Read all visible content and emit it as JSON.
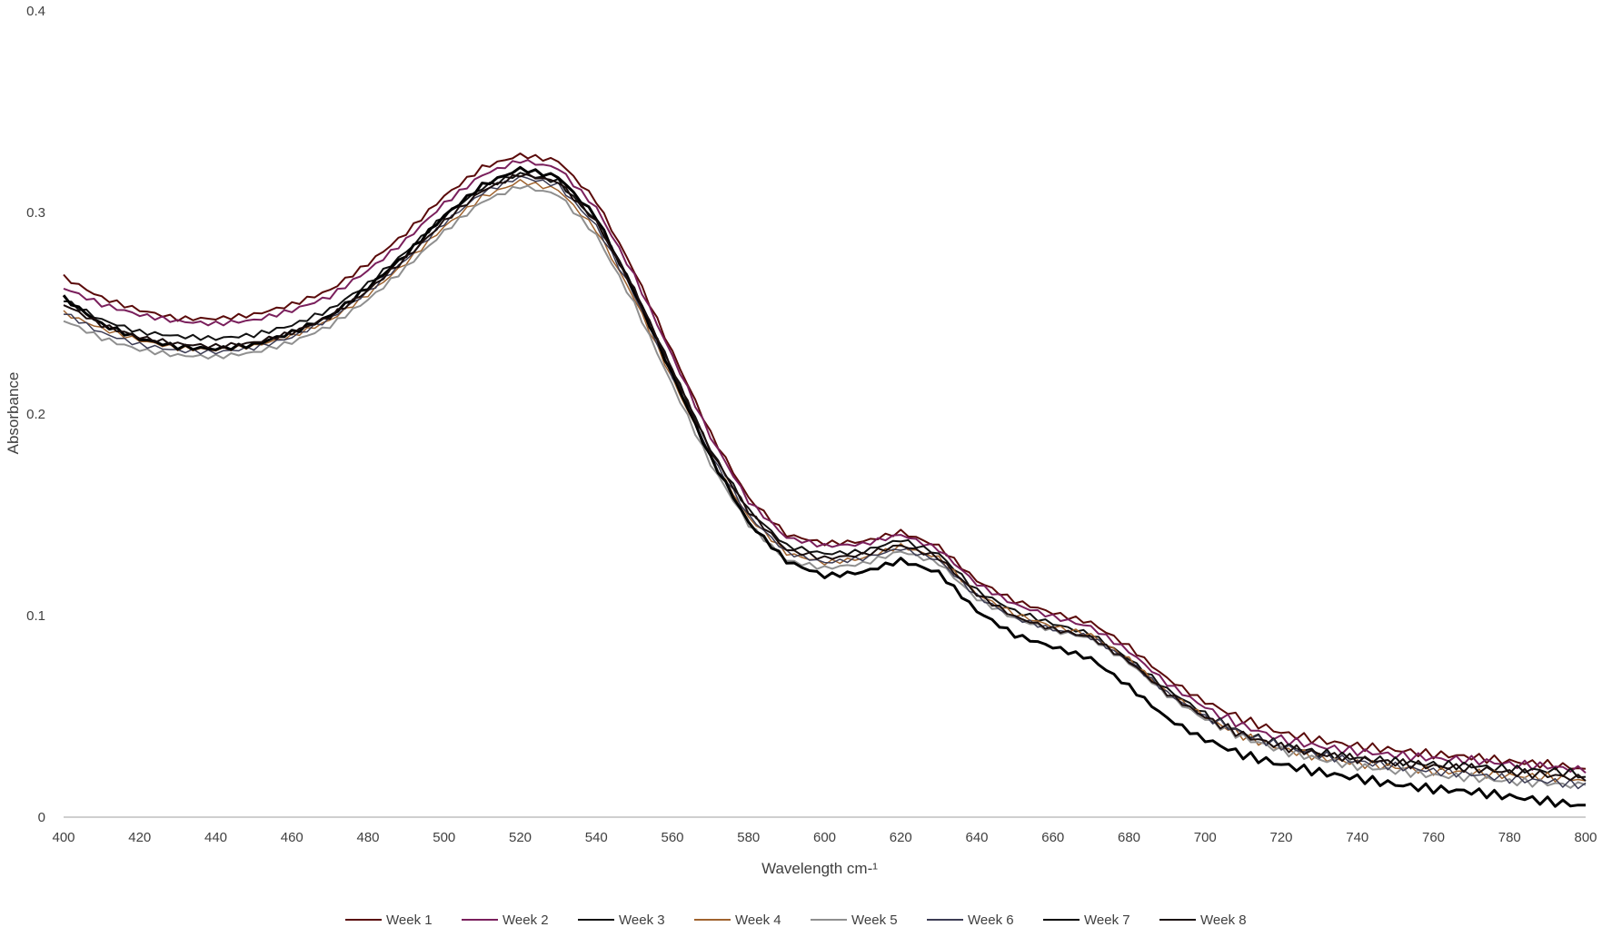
{
  "chart_data": {
    "type": "line",
    "xlabel": "Wavelength cm-¹",
    "ylabel": "Absorbance",
    "xlim": [
      400,
      800
    ],
    "ylim": [
      0,
      0.4
    ],
    "x_ticks": [
      "400",
      "420",
      "440",
      "460",
      "480",
      "500",
      "520",
      "540",
      "560",
      "580",
      "600",
      "620",
      "640",
      "660",
      "680",
      "700",
      "720",
      "740",
      "760",
      "780",
      "800"
    ],
    "y_ticks": [
      "0",
      "0.1",
      "0.2",
      "0.3",
      "0.4"
    ],
    "grid": false,
    "legend_position": "bottom",
    "x": [
      400,
      410,
      420,
      430,
      440,
      450,
      460,
      470,
      480,
      490,
      500,
      510,
      520,
      530,
      540,
      550,
      560,
      570,
      580,
      590,
      600,
      610,
      620,
      630,
      640,
      650,
      660,
      670,
      680,
      690,
      700,
      710,
      720,
      730,
      740,
      750,
      760,
      770,
      780,
      790,
      800
    ],
    "series": [
      {
        "name": "Week 1",
        "color": "#5a0a0a",
        "width": 2,
        "values": [
          0.268,
          0.258,
          0.252,
          0.248,
          0.248,
          0.25,
          0.255,
          0.262,
          0.275,
          0.29,
          0.308,
          0.322,
          0.328,
          0.325,
          0.305,
          0.27,
          0.23,
          0.19,
          0.158,
          0.14,
          0.136,
          0.137,
          0.142,
          0.135,
          0.118,
          0.108,
          0.102,
          0.097,
          0.085,
          0.069,
          0.057,
          0.048,
          0.041,
          0.037,
          0.034,
          0.032,
          0.03,
          0.029,
          0.027,
          0.026,
          0.024
        ]
      },
      {
        "name": "Week 2",
        "color": "#7a1f5c",
        "width": 2,
        "values": [
          0.262,
          0.254,
          0.249,
          0.246,
          0.245,
          0.247,
          0.252,
          0.259,
          0.272,
          0.287,
          0.305,
          0.319,
          0.326,
          0.322,
          0.302,
          0.268,
          0.228,
          0.188,
          0.156,
          0.138,
          0.134,
          0.135,
          0.14,
          0.133,
          0.116,
          0.106,
          0.1,
          0.095,
          0.083,
          0.067,
          0.055,
          0.046,
          0.039,
          0.035,
          0.032,
          0.03,
          0.028,
          0.027,
          0.025,
          0.024,
          0.022
        ]
      },
      {
        "name": "Week 3",
        "color": "#111111",
        "width": 2,
        "values": [
          0.256,
          0.246,
          0.24,
          0.238,
          0.237,
          0.239,
          0.244,
          0.252,
          0.265,
          0.281,
          0.299,
          0.313,
          0.32,
          0.316,
          0.296,
          0.262,
          0.222,
          0.182,
          0.152,
          0.134,
          0.13,
          0.131,
          0.137,
          0.13,
          0.112,
          0.102,
          0.096,
          0.091,
          0.079,
          0.064,
          0.052,
          0.043,
          0.037,
          0.033,
          0.03,
          0.028,
          0.026,
          0.025,
          0.023,
          0.022,
          0.02
        ]
      },
      {
        "name": "Week 4",
        "color": "#a0632e",
        "width": 1.5,
        "values": [
          0.25,
          0.242,
          0.236,
          0.232,
          0.231,
          0.233,
          0.238,
          0.246,
          0.259,
          0.275,
          0.293,
          0.308,
          0.316,
          0.312,
          0.292,
          0.258,
          0.218,
          0.179,
          0.149,
          0.131,
          0.126,
          0.128,
          0.134,
          0.128,
          0.11,
          0.1,
          0.094,
          0.09,
          0.078,
          0.062,
          0.05,
          0.041,
          0.035,
          0.031,
          0.028,
          0.026,
          0.024,
          0.023,
          0.021,
          0.02,
          0.018
        ]
      },
      {
        "name": "Week 5",
        "color": "#8f8f8f",
        "width": 2,
        "values": [
          0.247,
          0.238,
          0.232,
          0.229,
          0.228,
          0.23,
          0.235,
          0.243,
          0.256,
          0.272,
          0.29,
          0.305,
          0.313,
          0.309,
          0.289,
          0.255,
          0.215,
          0.176,
          0.146,
          0.128,
          0.124,
          0.126,
          0.132,
          0.126,
          0.108,
          0.098,
          0.092,
          0.088,
          0.076,
          0.06,
          0.048,
          0.039,
          0.033,
          0.029,
          0.026,
          0.024,
          0.022,
          0.021,
          0.019,
          0.018,
          0.016
        ]
      },
      {
        "name": "Week 6",
        "color": "#3c3c54",
        "width": 1.5,
        "values": [
          0.251,
          0.241,
          0.235,
          0.232,
          0.231,
          0.233,
          0.238,
          0.247,
          0.26,
          0.276,
          0.294,
          0.309,
          0.317,
          0.313,
          0.293,
          0.259,
          0.219,
          0.18,
          0.15,
          0.132,
          0.127,
          0.129,
          0.134,
          0.128,
          0.11,
          0.099,
          0.093,
          0.089,
          0.077,
          0.061,
          0.049,
          0.04,
          0.034,
          0.03,
          0.027,
          0.025,
          0.023,
          0.022,
          0.02,
          0.019,
          0.017
        ]
      },
      {
        "name": "Week 7",
        "color": "#000000",
        "width": 3,
        "values": [
          0.258,
          0.245,
          0.238,
          0.234,
          0.233,
          0.235,
          0.241,
          0.249,
          0.263,
          0.279,
          0.298,
          0.313,
          0.321,
          0.317,
          0.297,
          0.26,
          0.219,
          0.178,
          0.146,
          0.127,
          0.12,
          0.122,
          0.128,
          0.122,
          0.103,
          0.091,
          0.085,
          0.079,
          0.065,
          0.049,
          0.038,
          0.03,
          0.025,
          0.021,
          0.018,
          0.015,
          0.013,
          0.012,
          0.01,
          0.008,
          0.006
        ]
      },
      {
        "name": "Week 8",
        "color": "#1a0d0d",
        "width": 2,
        "values": [
          0.254,
          0.244,
          0.238,
          0.235,
          0.234,
          0.236,
          0.241,
          0.249,
          0.262,
          0.278,
          0.296,
          0.311,
          0.319,
          0.315,
          0.295,
          0.261,
          0.221,
          0.181,
          0.151,
          0.132,
          0.128,
          0.13,
          0.135,
          0.129,
          0.111,
          0.1,
          0.094,
          0.09,
          0.078,
          0.062,
          0.05,
          0.041,
          0.035,
          0.031,
          0.028,
          0.026,
          0.024,
          0.023,
          0.021,
          0.02,
          0.018
        ]
      }
    ]
  }
}
